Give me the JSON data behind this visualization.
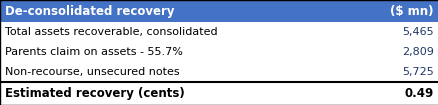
{
  "title_left": "De-consolidated recovery",
  "title_right": "($ mn)",
  "header_bg": "#4472C4",
  "header_text_color": "#FFFFFF",
  "row_bg": "#FFFFFF",
  "border_color": "#000000",
  "rows": [
    {
      "label": "Total assets recoverable, consolidated",
      "value": "5,465"
    },
    {
      "label": "Parents claim on assets - 55.7%",
      "value": "2,809"
    },
    {
      "label": "Non-recourse, unsecured notes",
      "value": "5,725"
    }
  ],
  "footer_label": "Estimated recovery (cents)",
  "footer_value": "0.49",
  "value_color": "#1F3864",
  "footer_value_color": "#000000",
  "label_font_size": 8.0,
  "header_font_size": 8.5,
  "footer_font_size": 8.5
}
